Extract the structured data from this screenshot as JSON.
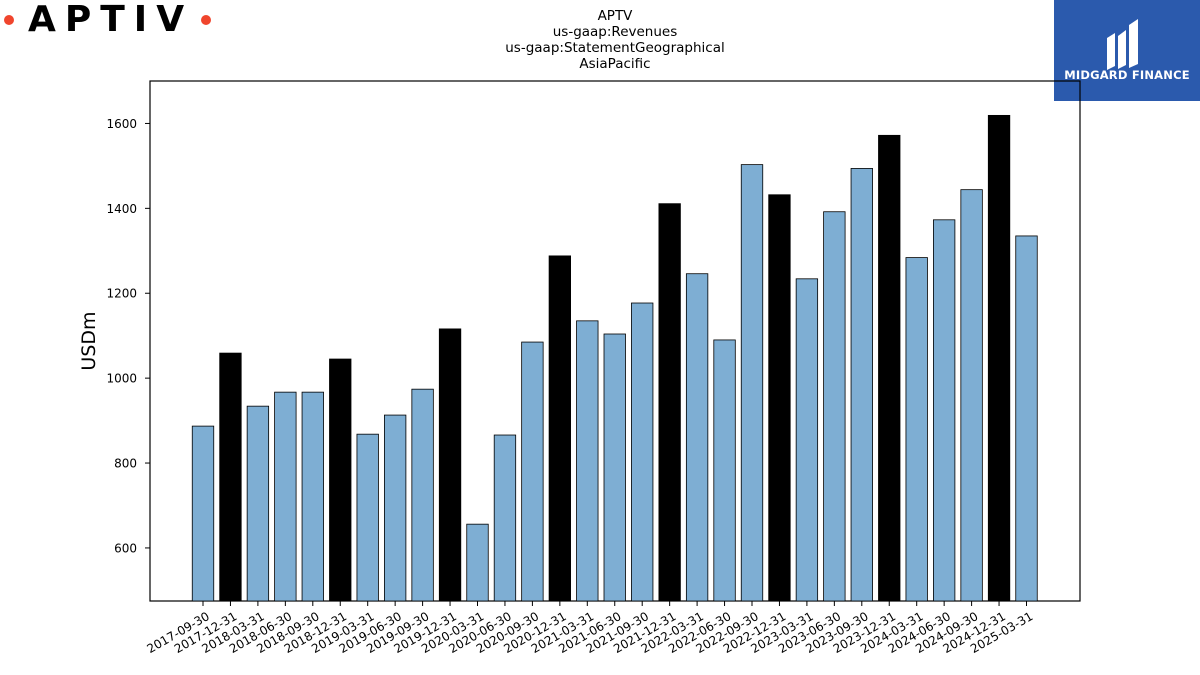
{
  "brand": {
    "wordmark": "APTIV",
    "accent": "#f0452d"
  },
  "logo": {
    "name": "MIDGARD FINANCE",
    "bg": "#2b5aad"
  },
  "chart_data": {
    "type": "bar",
    "title_lines": [
      "APTV",
      "us-gaap:Revenues",
      "us-gaap:StatementGeographical",
      "AsiaPacific"
    ],
    "xlabel": "",
    "ylabel": "USDm",
    "ylim": [
      475,
      1700
    ],
    "yticks": [
      600,
      800,
      1000,
      1200,
      1400,
      1600
    ],
    "grid": false,
    "colors": {
      "quarter": "#7eaed3",
      "year_end": "#000000",
      "edge": "#000000"
    },
    "categories": [
      "2017-09-30",
      "2017-12-31",
      "2018-03-31",
      "2018-06-30",
      "2018-09-30",
      "2018-12-31",
      "2019-03-31",
      "2019-06-30",
      "2019-09-30",
      "2019-12-31",
      "2020-03-31",
      "2020-06-30",
      "2020-09-30",
      "2020-12-31",
      "2021-03-31",
      "2021-06-30",
      "2021-09-30",
      "2021-12-31",
      "2022-03-31",
      "2022-06-30",
      "2022-09-30",
      "2022-12-31",
      "2023-03-31",
      "2023-06-30",
      "2023-09-30",
      "2023-12-31",
      "2024-03-31",
      "2024-06-30",
      "2024-09-30",
      "2024-12-31",
      "2025-03-31"
    ],
    "values": [
      887,
      1059,
      934,
      967,
      967,
      1045,
      868,
      913,
      974,
      1116,
      656,
      866,
      1085,
      1288,
      1135,
      1104,
      1177,
      1411,
      1246,
      1090,
      1503,
      1432,
      1234,
      1392,
      1494,
      1572,
      1284,
      1373,
      1444,
      1619,
      1335
    ],
    "highlight": [
      false,
      true,
      false,
      false,
      false,
      true,
      false,
      false,
      false,
      true,
      false,
      false,
      false,
      true,
      false,
      false,
      false,
      true,
      false,
      false,
      false,
      true,
      false,
      false,
      false,
      true,
      false,
      false,
      false,
      true,
      false
    ]
  }
}
